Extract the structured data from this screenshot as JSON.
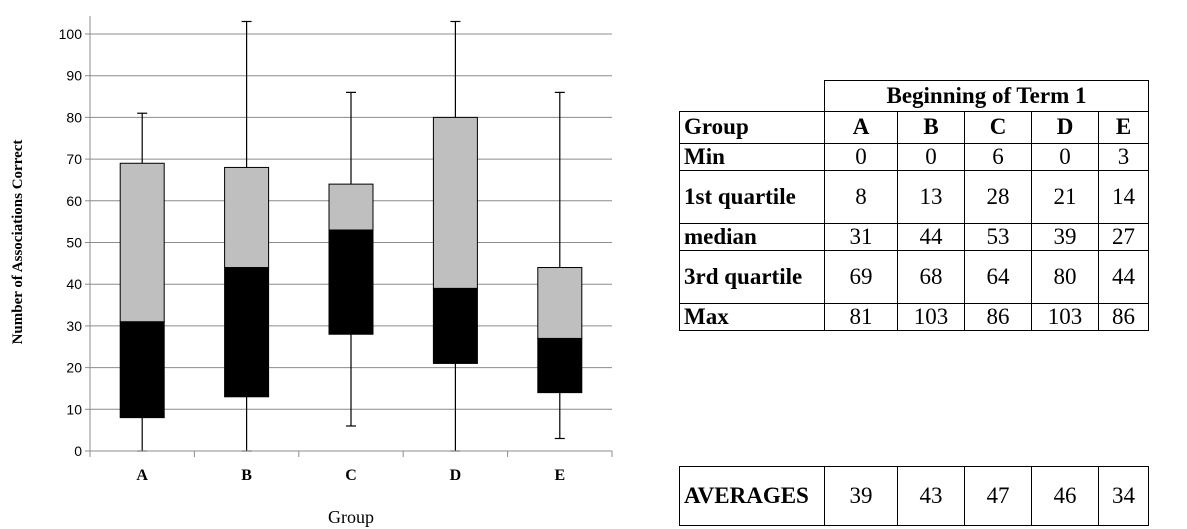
{
  "chart_data": {
    "type": "boxplot",
    "categories": [
      "A",
      "B",
      "C",
      "D",
      "E"
    ],
    "xlabel": "Group",
    "ylabel": "Number of Associations Correct",
    "ylim": [
      0,
      100
    ],
    "yticks": [
      0,
      10,
      20,
      30,
      40,
      50,
      60,
      70,
      80,
      90,
      100
    ],
    "grid": true,
    "boxes": [
      {
        "category": "A",
        "min": 0,
        "q1": 8,
        "median": 31,
        "q3": 69,
        "max": 81
      },
      {
        "category": "B",
        "min": 0,
        "q1": 13,
        "median": 44,
        "q3": 68,
        "max": 103
      },
      {
        "category": "C",
        "min": 6,
        "q1": 28,
        "median": 53,
        "q3": 64,
        "max": 86
      },
      {
        "category": "D",
        "min": 0,
        "q1": 21,
        "median": 39,
        "q3": 80,
        "max": 103
      },
      {
        "category": "E",
        "min": 3,
        "q1": 14,
        "median": 27,
        "q3": 44,
        "max": 86
      }
    ],
    "colors": {
      "lower_box": "#000000",
      "upper_box": "#bfbfbf",
      "grid": "#8c8c8c"
    }
  },
  "table": {
    "title": "Beginning of Term 1",
    "header_label": "Group",
    "columns": [
      "A",
      "B",
      "C",
      "D",
      "E"
    ],
    "rows": [
      {
        "label": "Min",
        "values": [
          "0",
          "0",
          "6",
          "0",
          "3"
        ]
      },
      {
        "label": "1st quartile",
        "values": [
          "8",
          "13",
          "28",
          "21",
          "14"
        ]
      },
      {
        "label": "median",
        "values": [
          "31",
          "44",
          "53",
          "39",
          "27"
        ]
      },
      {
        "label": "3rd quartile",
        "values": [
          "69",
          "68",
          "64",
          "80",
          "44"
        ]
      },
      {
        "label": "Max",
        "values": [
          "81",
          "103",
          "86",
          "103",
          "86"
        ]
      }
    ],
    "averages": {
      "label": "AVERAGES",
      "values": [
        "39",
        "43",
        "47",
        "46",
        "34"
      ]
    }
  }
}
